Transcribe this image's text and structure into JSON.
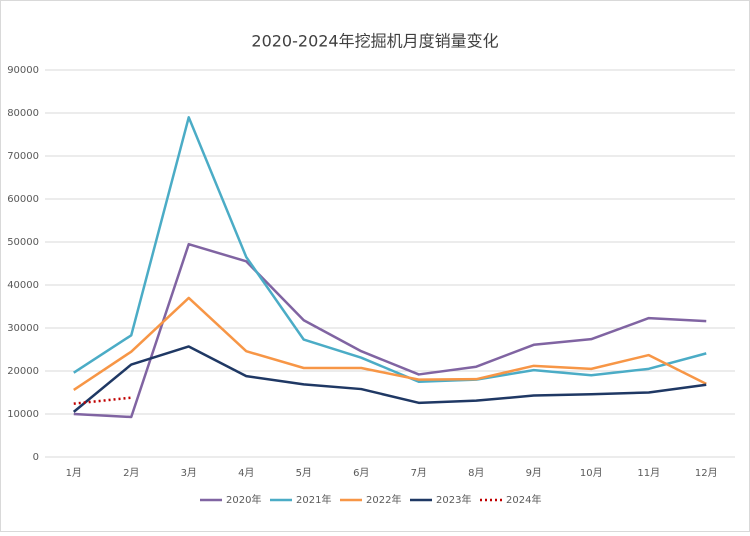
{
  "chart_data": {
    "type": "line",
    "title": "2020-2024年挖掘机月度销量变化",
    "categories": [
      "1月",
      "2月",
      "3月",
      "4月",
      "5月",
      "6月",
      "7月",
      "8月",
      "9月",
      "10月",
      "11月",
      "12月"
    ],
    "series": [
      {
        "name": "2020年",
        "color": "#8064a2",
        "values": [
          10000,
          9300,
          49500,
          45500,
          31800,
          24600,
          19200,
          21000,
          26100,
          27400,
          32300,
          31600
        ]
      },
      {
        "name": "2021年",
        "color": "#4bacc6",
        "values": [
          19600,
          28300,
          79000,
          46500,
          27300,
          23100,
          17500,
          18000,
          20200,
          19000,
          20500,
          24100
        ]
      },
      {
        "name": "2022年",
        "color": "#f79646",
        "values": [
          15600,
          24500,
          37000,
          24600,
          20700,
          20700,
          18000,
          18100,
          21200,
          20500,
          23700,
          17000
        ]
      },
      {
        "name": "2023年",
        "color": "#1f3864",
        "values": [
          10500,
          21500,
          25700,
          18800,
          16900,
          15800,
          12600,
          13100,
          14300,
          14600,
          15000,
          16800
        ]
      },
      {
        "name": "2024年",
        "color": "#c00000",
        "dashed": true,
        "values": [
          12400,
          13800,
          null,
          null,
          null,
          null,
          null,
          null,
          null,
          null,
          null,
          null
        ]
      }
    ],
    "ylim": [
      0,
      90000
    ],
    "yticks": [
      0,
      10000,
      20000,
      30000,
      40000,
      50000,
      60000,
      70000,
      80000,
      90000
    ],
    "grid": true,
    "legend": "bottom"
  }
}
